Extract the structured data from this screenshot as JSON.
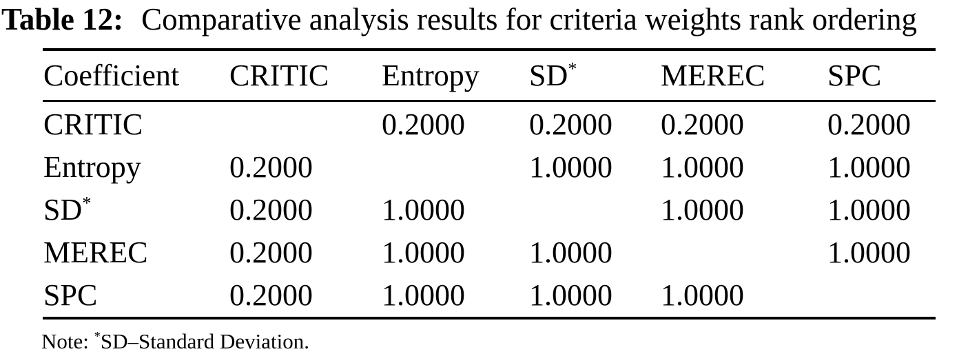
{
  "page": {
    "background_color": "#ffffff",
    "text_color": "#000000"
  },
  "caption": {
    "label": "Table 12:",
    "text": "Comparative analysis results for criteria weights rank ordering"
  },
  "table": {
    "headers": [
      {
        "text": "Coefficient",
        "sup": ""
      },
      {
        "text": "CRITIC",
        "sup": ""
      },
      {
        "text": "Entropy",
        "sup": ""
      },
      {
        "text": "SD",
        "sup": "*"
      },
      {
        "text": "MEREC",
        "sup": ""
      },
      {
        "text": "SPC",
        "sup": ""
      }
    ],
    "rows": [
      {
        "name": {
          "text": "CRITIC",
          "sup": ""
        },
        "values": [
          "",
          "0.2000",
          "0.2000",
          "0.2000",
          "0.2000"
        ]
      },
      {
        "name": {
          "text": "Entropy",
          "sup": ""
        },
        "values": [
          "0.2000",
          "",
          "1.0000",
          "1.0000",
          "1.0000"
        ]
      },
      {
        "name": {
          "text": "SD",
          "sup": "*"
        },
        "values": [
          "0.2000",
          "1.0000",
          "",
          "1.0000",
          "1.0000"
        ]
      },
      {
        "name": {
          "text": "MEREC",
          "sup": ""
        },
        "values": [
          "0.2000",
          "1.0000",
          "1.0000",
          "",
          "1.0000"
        ]
      },
      {
        "name": {
          "text": "SPC",
          "sup": ""
        },
        "values": [
          "0.2000",
          "1.0000",
          "1.0000",
          "1.0000",
          ""
        ]
      }
    ]
  },
  "note": {
    "prefix": "Note: ",
    "sup": "*",
    "text": "SD–Standard Deviation."
  }
}
